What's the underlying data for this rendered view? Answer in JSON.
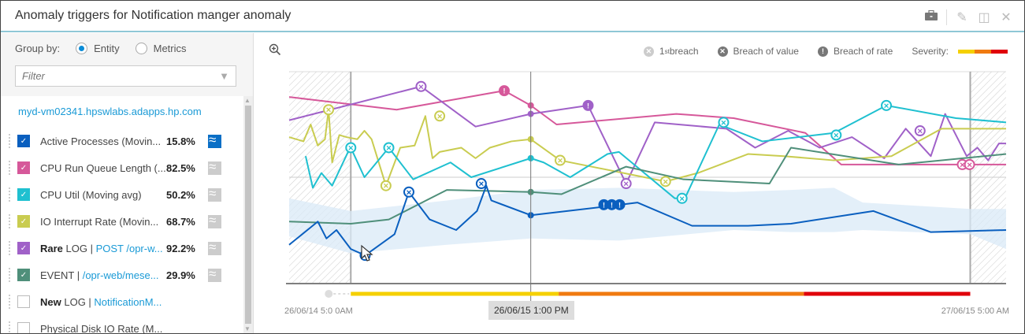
{
  "window": {
    "title": "Anomaly triggers for Notification manger anomaly",
    "tools": [
      {
        "name": "toolbox-icon",
        "glyph": "▬"
      },
      {
        "name": "edit-icon",
        "glyph": "✎"
      },
      {
        "name": "layout-icon",
        "glyph": "◫"
      },
      {
        "name": "close-icon",
        "glyph": "✕"
      }
    ]
  },
  "sidebar": {
    "group_by_label": "Group by:",
    "group_options": [
      {
        "label": "Entity",
        "selected": true
      },
      {
        "label": "Metrics",
        "selected": false
      }
    ],
    "filter_placeholder": "Filter",
    "host": "myd-vm02341.hpswlabs.adapps.hp.com",
    "metrics": [
      {
        "prefix": "",
        "label": "Active Processes (Movin...",
        "link": "",
        "pct": "15.8%",
        "checked": true,
        "color": "#0a5fbf",
        "spark": true,
        "spark_active": true
      },
      {
        "prefix": "",
        "label": "CPU Run Queue Length (...",
        "link": "",
        "pct": "82.5%",
        "checked": true,
        "color": "#d6589a",
        "spark": true,
        "spark_active": false
      },
      {
        "prefix": "",
        "label": "CPU Util (Moving avg)",
        "link": "",
        "pct": "50.2%",
        "checked": true,
        "color": "#1fc0d0",
        "spark": true,
        "spark_active": false
      },
      {
        "prefix": "",
        "label": "IO Interrupt Rate (Movin...",
        "link": "",
        "pct": "68.7%",
        "checked": true,
        "color": "#c9cc50",
        "spark": true,
        "spark_active": false
      },
      {
        "prefix": "Rare",
        "label": " LOG | ",
        "link": "POST /opr-w...",
        "pct": "92.2%",
        "checked": true,
        "color": "#a061c8",
        "spark": true,
        "spark_active": false
      },
      {
        "prefix": "",
        "label": "EVENT | ",
        "link": "/opr-web/mese...",
        "pct": "29.9%",
        "checked": true,
        "color": "#4f8f7a",
        "spark": true,
        "spark_active": false
      },
      {
        "prefix": "New",
        "label": " LOG | ",
        "link": "NotificationM...",
        "pct": "",
        "checked": false,
        "color": "#ffffff",
        "spark": false,
        "spark_active": false
      },
      {
        "prefix": "",
        "label": "Physical Disk IO Rate (M...",
        "link": "",
        "pct": "",
        "checked": false,
        "color": "#ffffff",
        "spark": false,
        "spark_active": false
      }
    ]
  },
  "legend": {
    "first_breach": "1",
    "first_breach_sup": "st",
    "first_breach_text": " breach",
    "breach_value": "Breach of value",
    "breach_rate": "Breach of  rate",
    "severity_label": "Severity:",
    "severity_colors": [
      "#f5d000",
      "#f07a10",
      "#e0000a"
    ]
  },
  "chart_data": {
    "type": "line",
    "title": "Anomaly triggers for Notification manger anomaly",
    "xlabel": "",
    "ylabel": "",
    "x_start_label": "26/06/14  5:0 0AM",
    "x_end_label": "27/06/15  5:00 AM",
    "cursor_label": "26/06/15  1:00 PM",
    "cursor_x": 33.7,
    "xlim": [
      0,
      100
    ],
    "ylim": [
      0,
      100
    ],
    "grid": true,
    "anomaly_window": [
      8.6,
      95.0
    ],
    "severity_bar": [
      {
        "from": 8.6,
        "to": 37.6,
        "color": "#f5d000"
      },
      {
        "from": 37.6,
        "to": 71.8,
        "color": "#f07a10"
      },
      {
        "from": 71.8,
        "to": 95.0,
        "color": "#e0000a"
      }
    ],
    "baseline_band": {
      "x": [
        0,
        8.6,
        22,
        33.7,
        46,
        62,
        70,
        76,
        80,
        95,
        100
      ],
      "upper": [
        40,
        34,
        39,
        44,
        45,
        43,
        44,
        45,
        38,
        35,
        35
      ],
      "lower": [
        22,
        14,
        18,
        21,
        20,
        25,
        24,
        24,
        25,
        23,
        16
      ]
    },
    "series": [
      {
        "name": "CPU Run Queue Length",
        "color": "#d6589a",
        "x": [
          0,
          15,
          30,
          33.7,
          37.3,
          54,
          62,
          72,
          77,
          95,
          100
        ],
        "y": [
          88,
          82,
          91,
          84,
          75,
          80,
          78,
          71,
          56,
          56,
          56
        ],
        "markers": [
          {
            "x": 30,
            "y": 91,
            "kind": "rate"
          },
          {
            "x": 93.9,
            "y": 56,
            "kind": "value"
          },
          {
            "x": 94.9,
            "y": 56,
            "kind": "value"
          }
        ]
      },
      {
        "name": "Rare LOG | POST /opr-w...",
        "color": "#a061c8",
        "x": [
          0,
          18.4,
          26,
          33.7,
          41.7,
          47,
          51,
          61,
          65,
          69.6,
          74,
          78.5,
          83,
          86,
          89.5,
          91.5,
          94.5,
          96,
          97.5,
          99,
          100
        ],
        "y": [
          77,
          93,
          74,
          80,
          84,
          47,
          76,
          73,
          64,
          72,
          64,
          69,
          59,
          73,
          60,
          80,
          60,
          64,
          58,
          66,
          66
        ],
        "markers": [
          {
            "x": 18.4,
            "y": 93,
            "kind": "value"
          },
          {
            "x": 41.7,
            "y": 84,
            "kind": "rate"
          },
          {
            "x": 47,
            "y": 47,
            "kind": "value"
          },
          {
            "x": 88,
            "y": 72,
            "kind": "value"
          }
        ]
      },
      {
        "name": "IO Interrupt Rate",
        "color": "#c9cc50",
        "x": [
          0,
          2,
          3,
          4,
          5,
          5.5,
          6,
          7,
          8,
          9.5,
          10.5,
          11.5,
          13.5,
          15.5,
          17.5,
          19,
          20,
          21,
          24,
          26,
          28,
          31,
          33.7,
          37.8,
          52.5,
          57,
          64,
          69,
          76,
          84,
          91,
          97,
          100
        ],
        "y": [
          69,
          67,
          75,
          65,
          68,
          82,
          57,
          70,
          69,
          68,
          72,
          68,
          46,
          64,
          65,
          79,
          59,
          62,
          64,
          59,
          64,
          67,
          68,
          58,
          48,
          52,
          61,
          60,
          58,
          60,
          73,
          73,
          73
        ],
        "markers": [
          {
            "x": 5.5,
            "y": 82,
            "kind": "value"
          },
          {
            "x": 13.5,
            "y": 46,
            "kind": "value"
          },
          {
            "x": 21,
            "y": 79,
            "kind": "value"
          },
          {
            "x": 37.8,
            "y": 58,
            "kind": "value"
          },
          {
            "x": 52.5,
            "y": 48,
            "kind": "value"
          }
        ]
      },
      {
        "name": "CPU Util",
        "color": "#1fc0d0",
        "x": [
          2.3,
          3.3,
          4.5,
          6,
          8.5,
          8.6,
          10.5,
          13.9,
          17.3,
          22.5,
          25.4,
          33.7,
          35.5,
          39.2,
          44.4,
          46,
          53.8,
          55.2,
          60,
          66,
          76,
          83.3,
          93,
          100
        ],
        "y": [
          60,
          45,
          52,
          46,
          64,
          64,
          50,
          64,
          49,
          57,
          50,
          59,
          57,
          50,
          61,
          62,
          40,
          40,
          75,
          67,
          71,
          84,
          78,
          76
        ],
        "markers": [
          {
            "x": 8.6,
            "y": 64,
            "kind": "value"
          },
          {
            "x": 13.9,
            "y": 64,
            "kind": "value"
          },
          {
            "x": 54.8,
            "y": 40,
            "kind": "value"
          },
          {
            "x": 60.6,
            "y": 76,
            "kind": "value"
          },
          {
            "x": 76.3,
            "y": 70,
            "kind": "value"
          },
          {
            "x": 83.3,
            "y": 84,
            "kind": "value"
          }
        ]
      },
      {
        "name": "EVENT | /opr-web/mese...",
        "color": "#4f8f7a",
        "x": [
          0,
          8.6,
          13.9,
          22,
          33.7,
          38,
          47,
          55,
          67,
          70,
          85,
          100
        ],
        "y": [
          29,
          28,
          30,
          44,
          43,
          42,
          55,
          49,
          47,
          64,
          56,
          61
        ],
        "markers": []
      },
      {
        "name": "Active Processes",
        "color": "#0a5fbf",
        "x": [
          0,
          4,
          5.2,
          6.6,
          8.6,
          10.6,
          14.7,
          16.7,
          19.6,
          23.3,
          26.2,
          27.5,
          28.2,
          33.7,
          43.9,
          48.6,
          56.2,
          64,
          70,
          81.5,
          89.5,
          100
        ],
        "y": [
          18,
          29,
          21,
          25,
          16,
          13,
          23,
          43,
          30,
          25,
          34,
          46,
          39,
          32,
          36,
          38,
          27,
          27,
          28,
          34,
          24,
          25
        ],
        "markers": [
          {
            "x": 10.6,
            "y": 13,
            "kind": "value"
          },
          {
            "x": 16.7,
            "y": 43,
            "kind": "value"
          },
          {
            "x": 26.8,
            "y": 47,
            "kind": "value"
          },
          {
            "x": 43.9,
            "y": 37,
            "kind": "rate"
          },
          {
            "x": 45.0,
            "y": 37,
            "kind": "rate"
          },
          {
            "x": 46.1,
            "y": 37,
            "kind": "rate"
          }
        ]
      }
    ]
  }
}
